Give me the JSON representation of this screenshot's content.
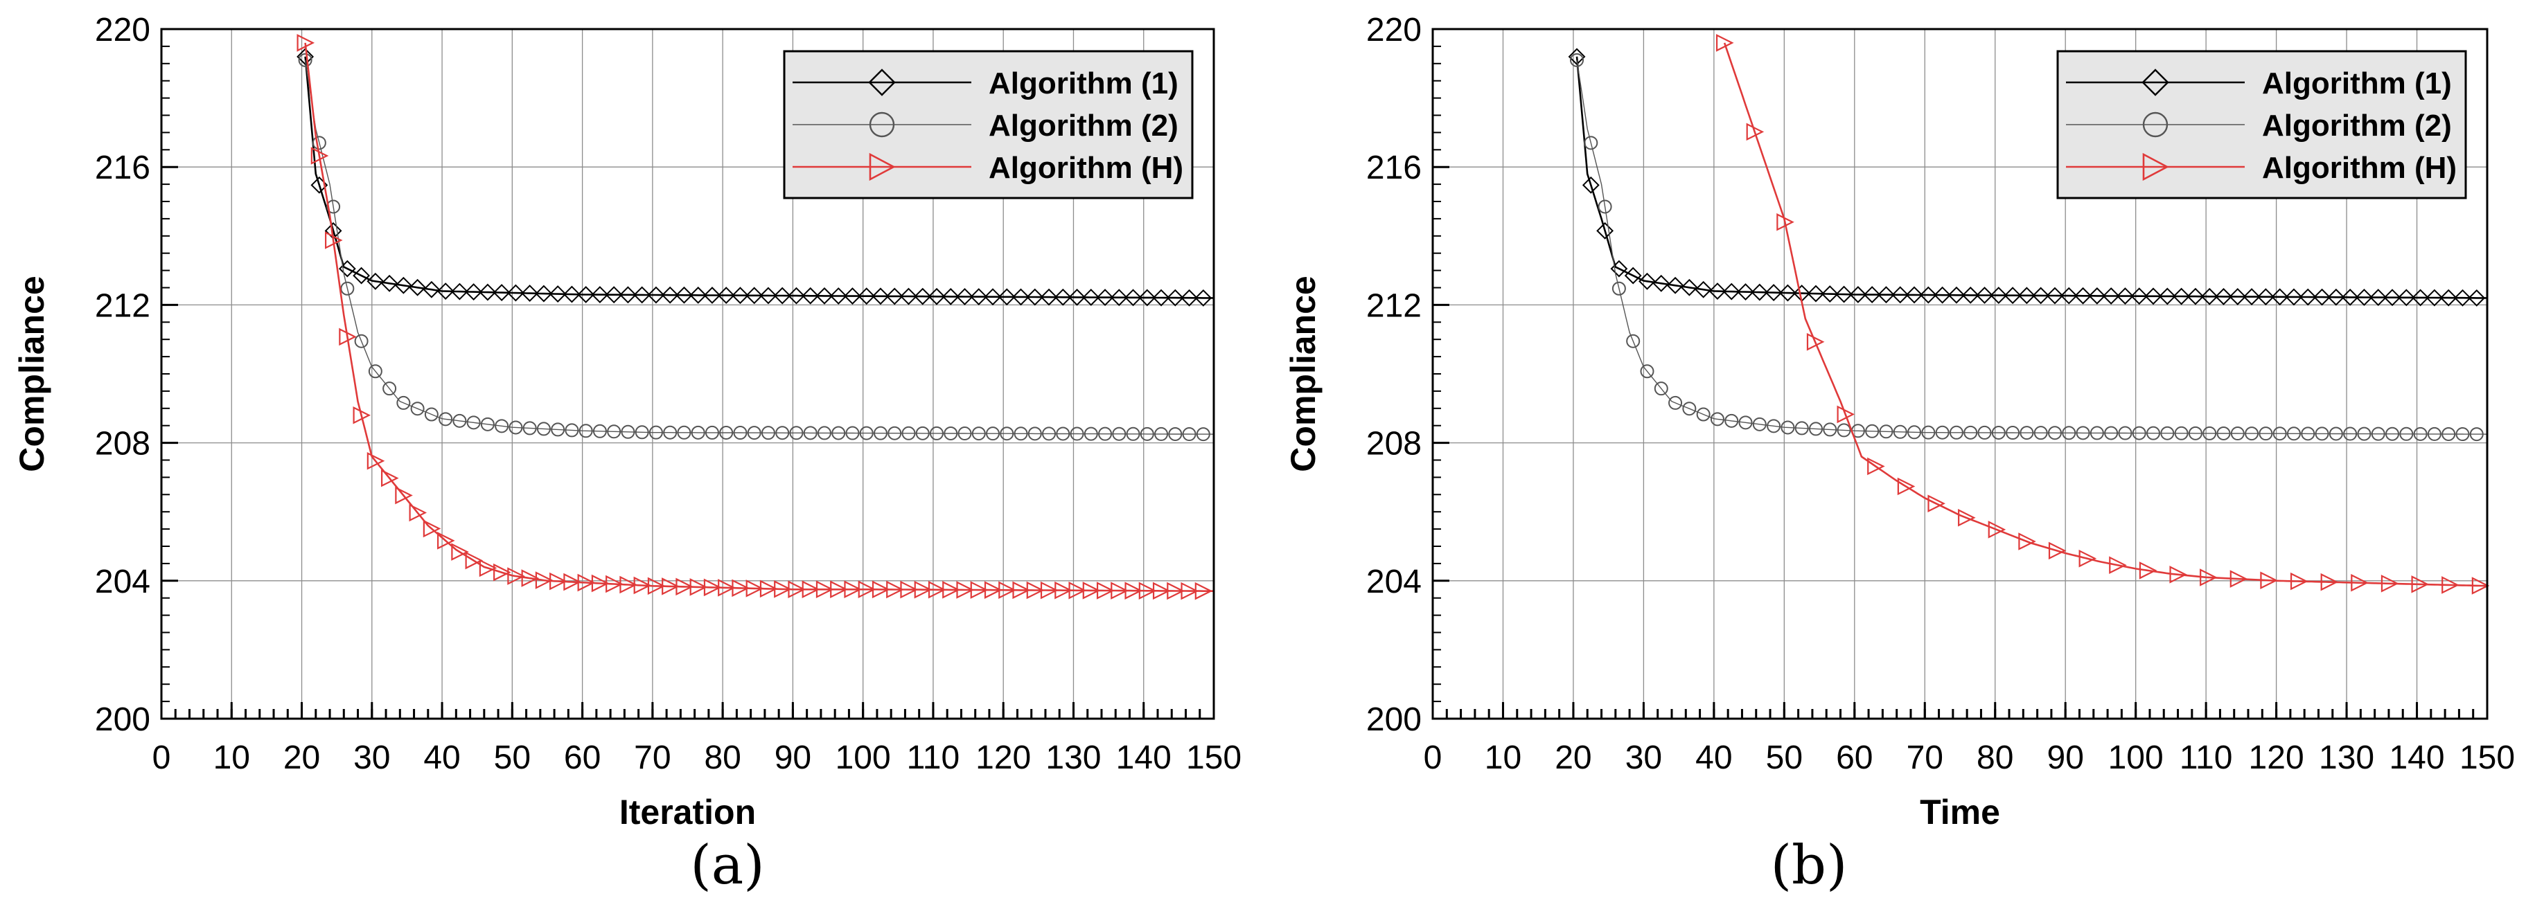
{
  "figure": {
    "caption_a": "(a)",
    "caption_b": "(b)"
  },
  "chart_data": [
    {
      "type": "line",
      "panel": "(a)",
      "xlabel": "Iteration",
      "ylabel": "Compliance",
      "xlim": [
        0,
        150
      ],
      "ylim": [
        200,
        220
      ],
      "xticks": [
        0,
        10,
        20,
        30,
        40,
        50,
        60,
        70,
        80,
        90,
        100,
        110,
        120,
        130,
        140,
        150
      ],
      "yticks": [
        200,
        204,
        208,
        212,
        216,
        220
      ],
      "grid": true,
      "legend_position": "top-right",
      "series": [
        {
          "name": "Algorithm (1)",
          "color": "#000000",
          "marker": "diamond",
          "points": [
            [
              20.5,
              219.2
            ],
            [
              22,
              215.8
            ],
            [
              24,
              214.5
            ],
            [
              26,
              213.1
            ],
            [
              30,
              212.7
            ],
            [
              40,
              212.4
            ],
            [
              60,
              212.3
            ],
            [
              150,
              212.2
            ]
          ]
        },
        {
          "name": "Algorithm (2)",
          "color": "#555555",
          "marker": "circle",
          "points": [
            [
              20.5,
              219.1
            ],
            [
              22,
              217.1
            ],
            [
              24,
              215.5
            ],
            [
              26,
              212.9
            ],
            [
              28,
              211.2
            ],
            [
              30,
              210.2
            ],
            [
              34,
              209.2
            ],
            [
              40,
              208.7
            ],
            [
              50,
              208.45
            ],
            [
              60,
              208.35
            ],
            [
              70,
              208.3
            ],
            [
              150,
              208.25
            ]
          ]
        },
        {
          "name": "Algorithm (H)",
          "color": "#e03a3a",
          "marker": "triangle-right",
          "points": [
            [
              20.5,
              219.6
            ],
            [
              22,
              216.9
            ],
            [
              24,
              214.6
            ],
            [
              26,
              211.7
            ],
            [
              28,
              209.2
            ],
            [
              30,
              207.6
            ],
            [
              34,
              206.6
            ],
            [
              38,
              205.6
            ],
            [
              42,
              204.9
            ],
            [
              46,
              204.4
            ],
            [
              50,
              204.15
            ],
            [
              55,
              204.0
            ],
            [
              60,
              203.95
            ],
            [
              70,
              203.85
            ],
            [
              80,
              203.8
            ],
            [
              90,
              203.75
            ],
            [
              100,
              203.75
            ],
            [
              150,
              203.7
            ]
          ]
        }
      ]
    },
    {
      "type": "line",
      "panel": "(b)",
      "xlabel": "Time",
      "ylabel": "Compliance",
      "xlim": [
        0,
        150
      ],
      "ylim": [
        200,
        220
      ],
      "xticks": [
        0,
        10,
        20,
        30,
        40,
        50,
        60,
        70,
        80,
        90,
        100,
        110,
        120,
        130,
        140,
        150
      ],
      "yticks": [
        200,
        204,
        208,
        212,
        216,
        220
      ],
      "grid": true,
      "legend_position": "top-right",
      "series": [
        {
          "name": "Algorithm (1)",
          "color": "#000000",
          "marker": "diamond",
          "points": [
            [
              20.5,
              219.2
            ],
            [
              22,
              215.8
            ],
            [
              24,
              214.5
            ],
            [
              26,
              213.1
            ],
            [
              30,
              212.7
            ],
            [
              40,
              212.4
            ],
            [
              60,
              212.3
            ],
            [
              150,
              212.2
            ]
          ]
        },
        {
          "name": "Algorithm (2)",
          "color": "#555555",
          "marker": "circle",
          "points": [
            [
              20.5,
              219.1
            ],
            [
              22,
              217.1
            ],
            [
              24,
              215.5
            ],
            [
              26,
              212.9
            ],
            [
              28,
              211.2
            ],
            [
              30,
              210.2
            ],
            [
              34,
              209.2
            ],
            [
              40,
              208.7
            ],
            [
              50,
              208.45
            ],
            [
              60,
              208.35
            ],
            [
              70,
              208.3
            ],
            [
              150,
              208.25
            ]
          ]
        },
        {
          "name": "Algorithm (H)",
          "color": "#e03a3a",
          "marker": "triangle-right",
          "points": [
            [
              41.5,
              219.6
            ],
            [
              46,
              216.9
            ],
            [
              50,
              214.5
            ],
            [
              53,
              211.6
            ],
            [
              58,
              209.2
            ],
            [
              61,
              207.6
            ],
            [
              66,
              206.9
            ],
            [
              70,
              206.4
            ],
            [
              75,
              205.9
            ],
            [
              80,
              205.5
            ],
            [
              85,
              205.1
            ],
            [
              90,
              204.8
            ],
            [
              95,
              204.55
            ],
            [
              100,
              204.35
            ],
            [
              105,
              204.2
            ],
            [
              110,
              204.1
            ],
            [
              120,
              204.0
            ],
            [
              130,
              203.95
            ],
            [
              140,
              203.9
            ],
            [
              150,
              203.85
            ]
          ]
        }
      ]
    }
  ]
}
